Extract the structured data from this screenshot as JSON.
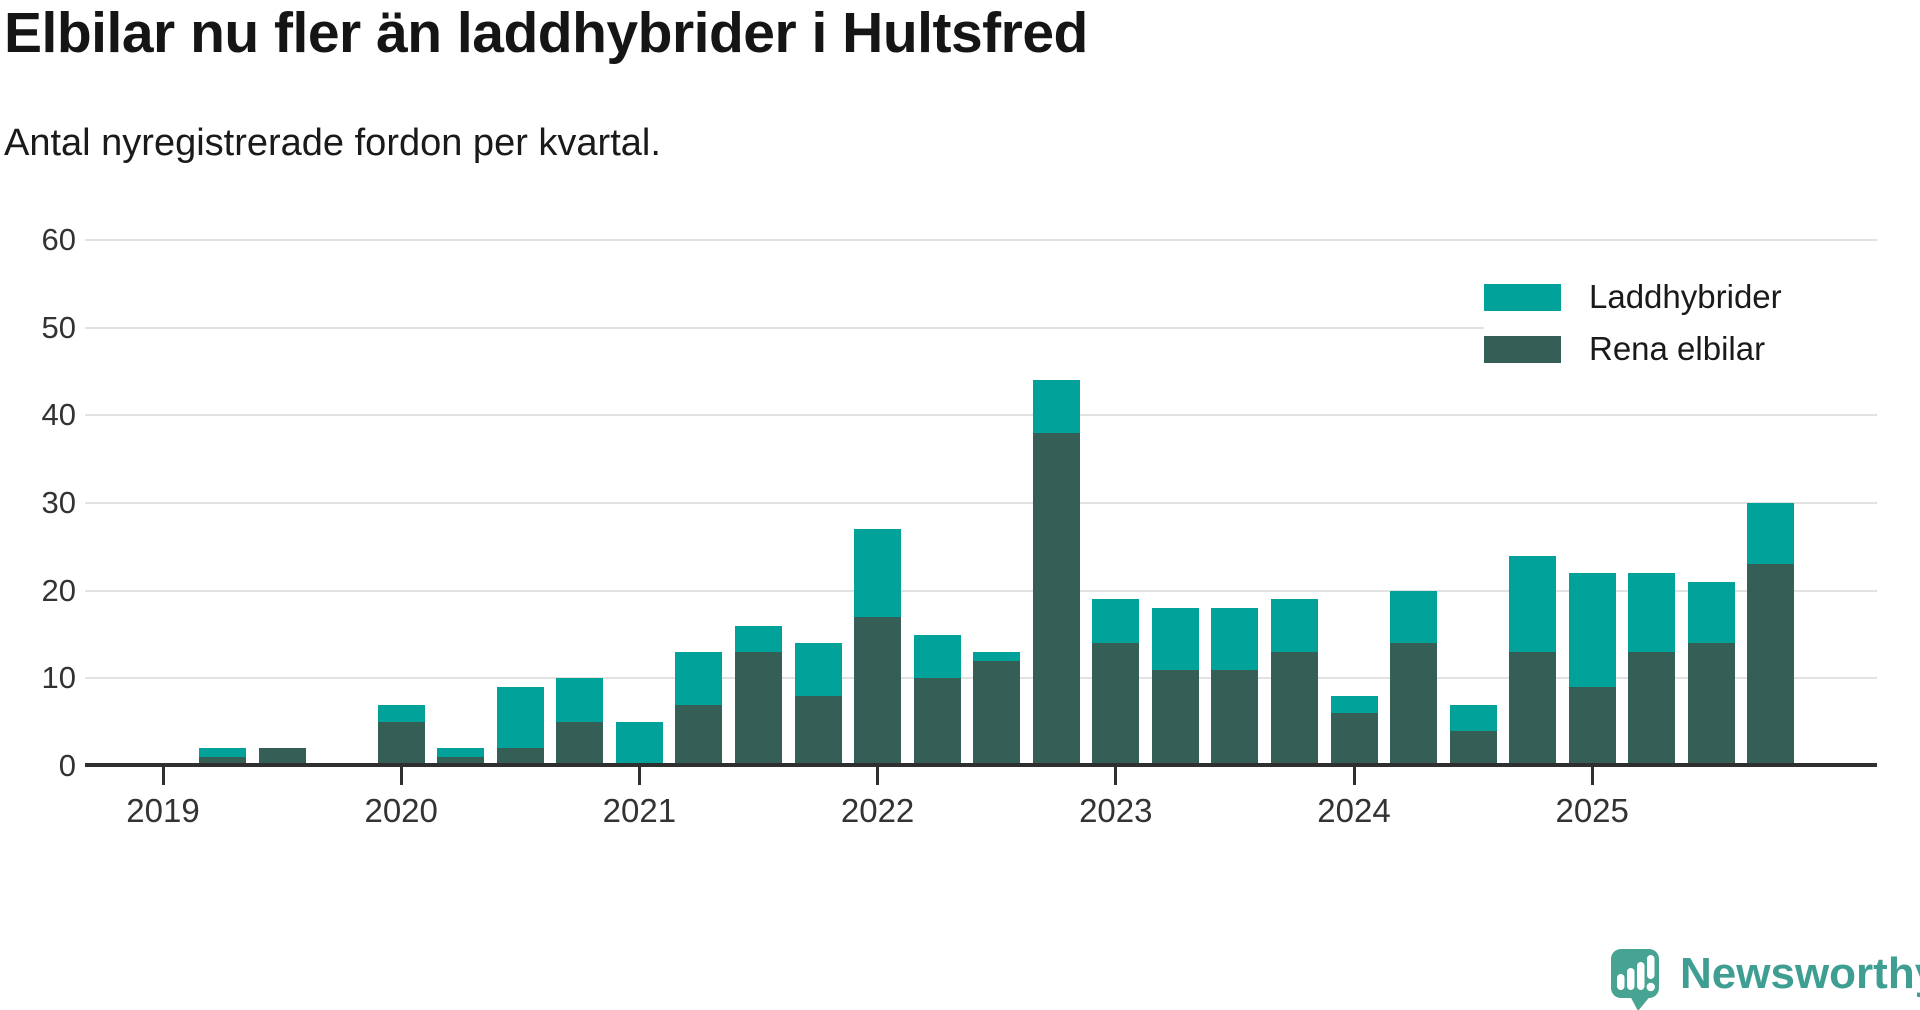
{
  "title": "Elbilar nu fler än laddhybrider i Hultsfred",
  "subtitle": "Antal nyregistrerade fordon per kvartal.",
  "legend": [
    {
      "label": "Laddhybrider",
      "color": "#00A29A"
    },
    {
      "label": "Rena elbilar",
      "color": "#355E56"
    }
  ],
  "brand": {
    "name": "Newsworthy",
    "color": "#3f9e92"
  },
  "chart_data": {
    "type": "bar",
    "stacked": true,
    "title": "Elbilar nu fler än laddhybrider i Hultsfred",
    "subtitle": "Antal nyregistrerade fordon per kvartal.",
    "x_unit": "quarter",
    "categories": [
      "2019 Q1",
      "2019 Q2",
      "2019 Q3",
      "2019 Q4",
      "2020 Q1",
      "2020 Q2",
      "2020 Q3",
      "2020 Q4",
      "2021 Q1",
      "2021 Q2",
      "2021 Q3",
      "2021 Q4",
      "2022 Q1",
      "2022 Q2",
      "2022 Q3",
      "2022 Q4",
      "2023 Q1",
      "2023 Q2",
      "2023 Q3",
      "2023 Q4",
      "2024 Q1",
      "2024 Q2",
      "2024 Q3",
      "2024 Q4",
      "2025 Q1",
      "2025 Q2",
      "2025 Q3",
      "2025 Q4"
    ],
    "series_bottom_to_top": [
      {
        "name": "Rena elbilar",
        "color": "#355E56",
        "values": [
          0,
          1,
          2,
          0,
          5,
          1,
          2,
          5,
          0,
          7,
          13,
          8,
          17,
          10,
          12,
          38,
          14,
          11,
          11,
          13,
          6,
          14,
          4,
          13,
          9,
          13,
          14,
          23
        ]
      },
      {
        "name": "Laddhybrider",
        "color": "#00A29A",
        "values": [
          0,
          1,
          0,
          0,
          2,
          1,
          7,
          5,
          5,
          6,
          3,
          6,
          10,
          5,
          1,
          6,
          5,
          7,
          7,
          6,
          2,
          6,
          3,
          11,
          13,
          9,
          7,
          7
        ]
      }
    ],
    "totals": [
      0,
      2,
      2,
      0,
      7,
      2,
      9,
      10,
      5,
      13,
      16,
      14,
      27,
      15,
      13,
      44,
      19,
      18,
      18,
      19,
      8,
      20,
      7,
      24,
      22,
      22,
      21,
      30
    ],
    "year_labels": [
      "2019",
      "2020",
      "2021",
      "2022",
      "2023",
      "2024",
      "2025"
    ],
    "yticks": [
      0,
      10,
      20,
      30,
      40,
      50,
      60
    ],
    "ylim": [
      0,
      60
    ],
    "grid": true,
    "legend_position": "top-right"
  }
}
